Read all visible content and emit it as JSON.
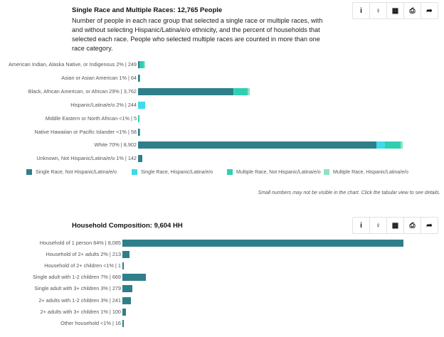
{
  "race_section": {
    "title": "Single Race and Multiple Races: 12,765 People",
    "description": "Number of people in each race group that selected a single race or multiple races, with and without selecting Hispanic/Latina/e/o ethnicity, and the percent of households that selected each race. People who selected multiple races are counted in more than one race category.",
    "note": "Small numbers may not be visible in the chart. Click the tabular view to see details."
  },
  "household_section": {
    "title": "Household Composition: 9,604 HH"
  },
  "toolbar_icons": [
    "info-icon",
    "lightbulb-icon",
    "grid-icon",
    "print-icon",
    "export-icon"
  ],
  "toolbar_glyphs": [
    "i",
    "♀",
    "▦",
    "⎙",
    "➦"
  ],
  "chart_data": [
    {
      "type": "bar",
      "orientation": "horizontal",
      "stacked": true,
      "title": "Single Race and Multiple Races: 12,765 People",
      "categories": [
        "American Indian, Alaska Native, or Indigenous 2% | 249",
        "Asian or Asian American 1% | 64",
        "Black, African American, or African 29% | 3,762",
        "Hispanic/Latina/e/o 2% | 244",
        "Middle Eastern or North African <1% | 5",
        "Native Hawaiian or Pacific Islander <1% | 58",
        "White 70% | 8,902",
        "Unknown, Not Hispanic/Latina/e/o 1% | 142"
      ],
      "series": [
        {
          "name": "Single Race, Not Hispanic/Latina/e/o",
          "color": "#2f7f8a",
          "values": [
            50,
            20,
            3200,
            0,
            0,
            20,
            8015,
            142
          ]
        },
        {
          "name": "Single Race, Hispanic/Latina/e/o",
          "color": "#3fdbe8",
          "values": [
            0,
            0,
            40,
            244,
            0,
            0,
            290,
            0
          ]
        },
        {
          "name": "Multiple Race, Not Hispanic/Latina/e/o",
          "color": "#2fcfb0",
          "values": [
            150,
            44,
            450,
            0,
            5,
            38,
            520,
            0
          ]
        },
        {
          "name": "Multiple Race, Hispanic/Latina/e/o",
          "color": "#8fe3c0",
          "values": [
            49,
            0,
            72,
            0,
            0,
            0,
            77,
            0
          ]
        }
      ],
      "xlim": [
        0,
        8902
      ],
      "legend": "bottom"
    },
    {
      "type": "bar",
      "orientation": "horizontal",
      "title": "Household Composition: 9,604 HH",
      "categories": [
        "Household of 1 person 84% | 8,085",
        "Household of 2+ adults 2% | 213",
        "Household of 2+ children <1% | 1",
        "Single adult with 1-2 children 7% | 669",
        "Single adult with 3+ children 3% | 279",
        "2+ adults with 1-2 children 3% | 241",
        "2+ adults with 3+ children 1% | 100",
        "Other household <1% | 16"
      ],
      "values": [
        8085,
        213,
        1,
        669,
        279,
        241,
        100,
        16
      ],
      "color": "#2f7f8a",
      "xlim": [
        0,
        8085
      ]
    }
  ]
}
